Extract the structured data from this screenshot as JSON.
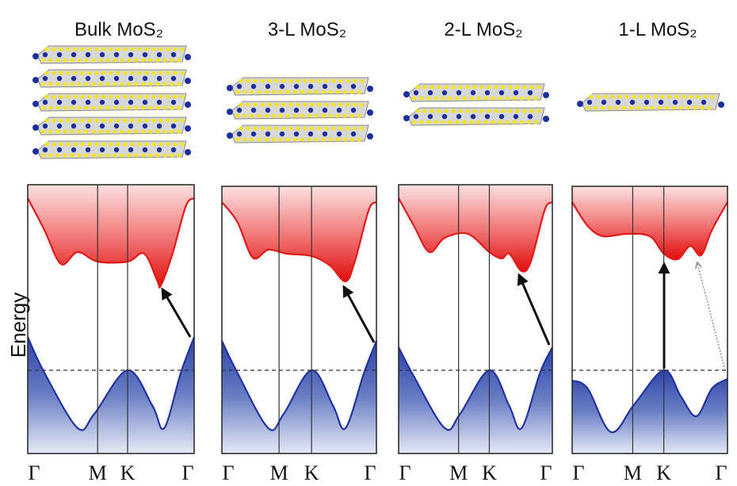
{
  "axis_label": "Energy",
  "panels": [
    {
      "title": "Bulk MoS₂",
      "k_labels": [
        "Γ",
        "M",
        "K",
        "Γ"
      ]
    },
    {
      "title": "3-L MoS₂",
      "k_labels": [
        "Γ",
        "M",
        "K",
        "Γ"
      ]
    },
    {
      "title": "2-L MoS₂",
      "k_labels": [
        "Γ",
        "M",
        "K",
        "Γ"
      ]
    },
    {
      "title": "1-L MoS₂",
      "k_labels": [
        "Γ",
        "M",
        "K",
        "Γ"
      ]
    }
  ]
}
